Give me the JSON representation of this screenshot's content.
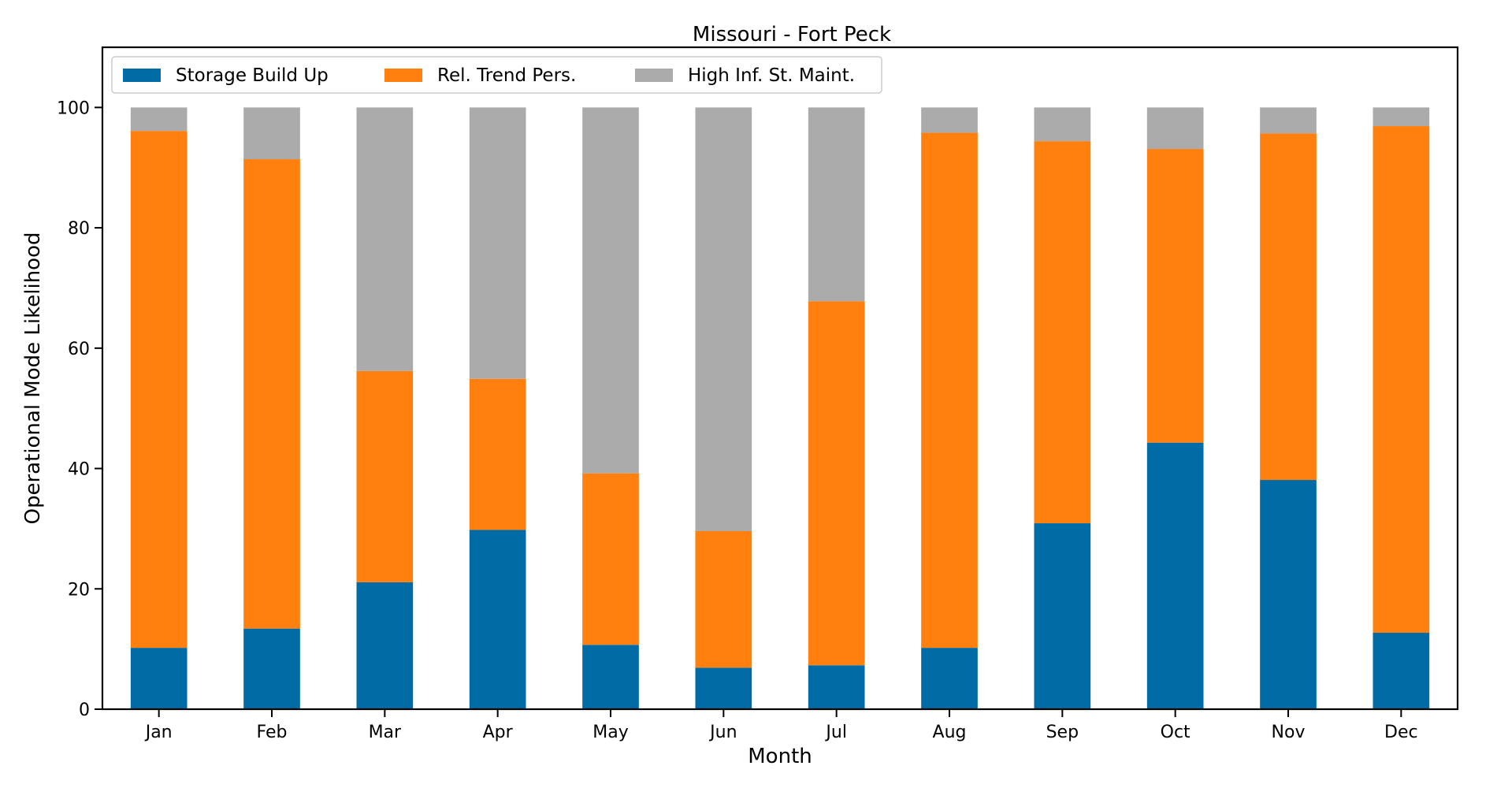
{
  "chart_data": {
    "type": "bar",
    "stacked": true,
    "title": "Missouri - Fort Peck",
    "xlabel": "Month",
    "ylabel": "Operational Mode Likelihood",
    "ylim": [
      0,
      110
    ],
    "yticks": [
      0,
      20,
      40,
      60,
      80,
      100
    ],
    "categories": [
      "Jan",
      "Feb",
      "Mar",
      "Apr",
      "May",
      "Jun",
      "Jul",
      "Aug",
      "Sep",
      "Oct",
      "Nov",
      "Dec"
    ],
    "series": [
      {
        "name": "Storage Build Up",
        "color": "#006ba4",
        "values": [
          10.2,
          13.4,
          21.1,
          29.8,
          10.7,
          6.9,
          7.3,
          10.2,
          30.9,
          44.3,
          38.1,
          12.7
        ]
      },
      {
        "name": "Rel. Trend Pers.",
        "color": "#ff800e",
        "values": [
          85.9,
          78.0,
          35.1,
          25.1,
          28.5,
          22.7,
          60.5,
          85.6,
          63.5,
          48.8,
          57.6,
          84.2
        ]
      },
      {
        "name": "High Inf. St. Maint.",
        "color": "#ababab",
        "values": [
          3.9,
          8.6,
          43.8,
          45.1,
          60.8,
          70.4,
          32.2,
          4.2,
          5.6,
          6.9,
          4.3,
          3.1
        ]
      }
    ],
    "legend": "top-left",
    "grid": false
  }
}
